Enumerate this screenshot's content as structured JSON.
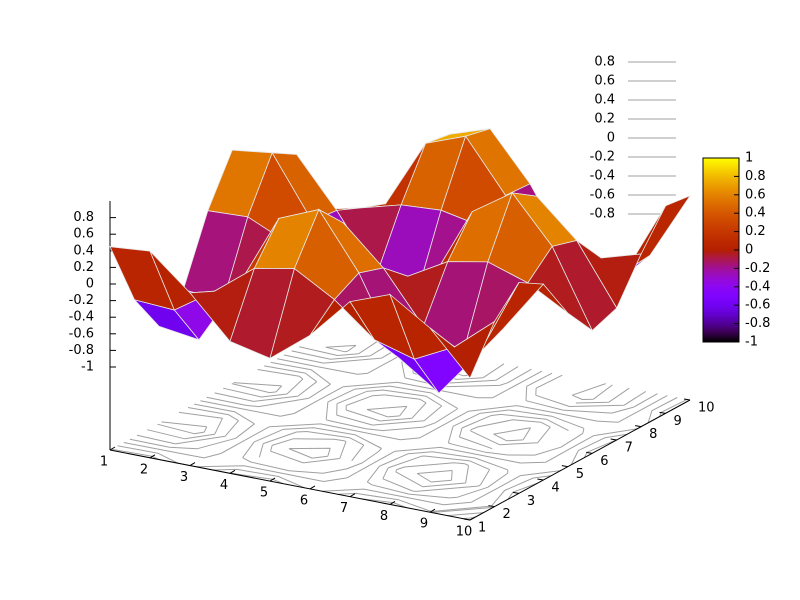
{
  "chart_data": {
    "type": "surface",
    "x": [
      1,
      2,
      3,
      4,
      5,
      6,
      7,
      8,
      9,
      10
    ],
    "y": [
      1,
      2,
      3,
      4,
      5,
      6,
      7,
      8,
      9,
      10
    ],
    "z": [
      [
        0.45,
        0.49,
        0.08,
        -0.41,
        -0.52,
        -0.15,
        0.35,
        0.53,
        0.22,
        -0.29
      ],
      [
        -0.35,
        -0.38,
        -0.06,
        0.31,
        0.4,
        0.12,
        -0.27,
        -0.41,
        -0.17,
        0.23
      ],
      [
        -0.83,
        -0.9,
        -0.14,
        0.75,
        0.95,
        0.28,
        -0.65,
        -0.98,
        -0.41,
        0.54
      ],
      [
        -0.55,
        -0.59,
        -0.09,
        0.5,
        0.63,
        0.18,
        -0.43,
        -0.65,
        -0.27,
        0.36
      ],
      [
        0.24,
        0.26,
        0.04,
        -0.21,
        -0.27,
        -0.08,
        0.19,
        0.28,
        0.12,
        -0.15
      ],
      [
        0.81,
        0.87,
        0.14,
        -0.73,
        -0.92,
        -0.27,
        0.63,
        0.95,
        0.4,
        -0.52
      ],
      [
        0.63,
        0.69,
        0.11,
        -0.57,
        -0.72,
        -0.21,
        0.5,
        0.75,
        0.31,
        -0.41
      ],
      [
        -0.12,
        -0.13,
        -0.02,
        0.11,
        0.14,
        0.04,
        -0.1,
        -0.14,
        -0.06,
        0.08
      ],
      [
        -0.77,
        -0.83,
        -0.13,
        0.69,
        0.87,
        0.25,
        -0.6,
        -0.9,
        -0.38,
        0.5
      ],
      [
        -0.71,
        -0.76,
        -0.12,
        0.64,
        0.8,
        0.23,
        -0.55,
        -0.83,
        -0.35,
        0.46
      ]
    ],
    "xlim": [
      1,
      10
    ],
    "ylim": [
      1,
      10
    ],
    "zlim": [
      -1,
      1
    ],
    "xticks": [
      1,
      2,
      3,
      4,
      5,
      6,
      7,
      8,
      9,
      10
    ],
    "yticks": [
      1,
      2,
      3,
      4,
      5,
      6,
      7,
      8,
      9,
      10
    ],
    "zticks": [
      -1,
      -0.8,
      -0.6,
      -0.4,
      -0.2,
      0,
      0.2,
      0.4,
      0.6,
      0.8
    ],
    "contour_levels": [
      0.8,
      0.6,
      0.4,
      0.2,
      0,
      -0.2,
      -0.4,
      -0.6,
      -0.8
    ],
    "colorbar_ticks": [
      1,
      0.8,
      0.6,
      0.4,
      0.2,
      0,
      -0.2,
      -0.4,
      -0.6,
      -0.8,
      -1
    ],
    "contour_color": "#a0a0a0",
    "mesh_color": "#e8e8e8"
  }
}
